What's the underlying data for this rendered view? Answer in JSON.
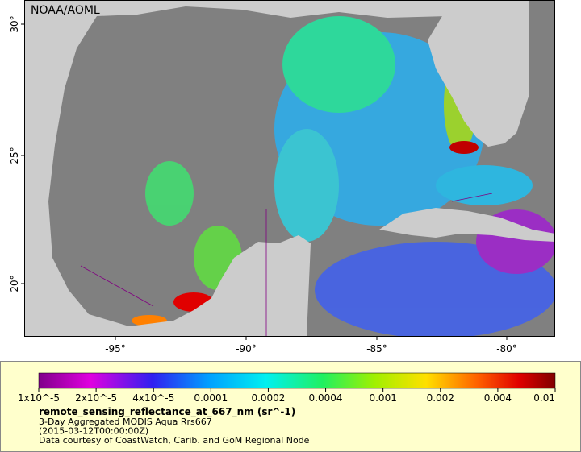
{
  "map": {
    "credit": "NOAA/AOML",
    "lat_ticks": [
      "30°",
      "25°",
      "20°"
    ],
    "lon_ticks": [
      "-95°",
      "-90°",
      "-85°",
      "-80°"
    ]
  },
  "colorbar": {
    "labels": [
      "1x10^-5",
      "2x10^-5",
      "4x10^-5",
      "0.0001",
      "0.0002",
      "0.0004",
      "0.001",
      "0.002",
      "0.004",
      "0.01"
    ]
  },
  "caption": {
    "variable": "remote_sensing_reflectance_at_667_nm (sr^-1)",
    "lines": [
      "3-Day Aggregated MODIS Aqua Rrs667",
      "(2015-03-12T00:00:00Z)",
      "Data courtesy of CoastWatch, Carib. and GoM Regional Node"
    ]
  }
}
